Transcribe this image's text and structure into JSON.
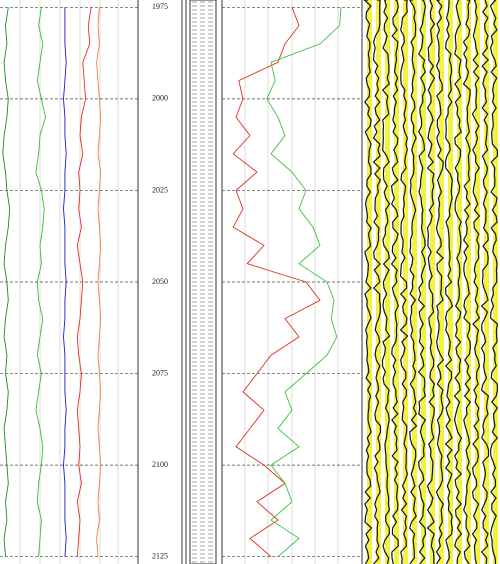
{
  "chart_data": {
    "type": "well-log",
    "ylim": [
      1973,
      2127
    ],
    "yticks": [
      1975,
      2000,
      2025,
      2050,
      2075,
      2100,
      2125
    ],
    "grid": true,
    "y": [
      1975,
      1980,
      1985,
      1990,
      1995,
      2000,
      2005,
      2010,
      2015,
      2020,
      2025,
      2030,
      2035,
      2040,
      2045,
      2050,
      2055,
      2060,
      2065,
      2070,
      2075,
      2080,
      2085,
      2090,
      2095,
      2100,
      2105,
      2110,
      2115,
      2120,
      2125
    ],
    "tracks": [
      {
        "xlim": [
          0,
          100
        ],
        "series": [
          {
            "color": "#1e8a1e",
            "values": [
              6,
              4,
              5,
              3,
              4,
              6,
              5,
              3,
              2,
              4,
              5,
              7,
              6,
              4,
              3,
              5,
              6,
              4,
              3,
              5,
              4,
              6,
              5,
              3,
              4,
              5,
              6,
              4,
              5,
              3,
              4
            ]
          },
          {
            "color": "#2ec42e",
            "values": [
              30,
              28,
              31,
              29,
              27,
              30,
              33,
              29,
              28,
              26,
              30,
              32,
              31,
              29,
              30,
              27,
              28,
              31,
              29,
              27,
              30,
              28,
              26,
              29,
              31,
              30,
              28,
              27,
              30,
              29,
              28
            ]
          },
          {
            "color": "#1a1ad0",
            "values": [
              47,
              47,
              47,
              48,
              47,
              46,
              47,
              47,
              48,
              47,
              47,
              46,
              47,
              47,
              47,
              48,
              47,
              47,
              46,
              47,
              47,
              47,
              48,
              47,
              47,
              46,
              47,
              47,
              47,
              48,
              47
            ]
          },
          {
            "color": "#e03020",
            "values": [
              66,
              64,
              65,
              60,
              61,
              62,
              59,
              58,
              60,
              57,
              58,
              57,
              59,
              56,
              58,
              60,
              59,
              58,
              56,
              57,
              59,
              58,
              56,
              57,
              58,
              57,
              59,
              56,
              58,
              57,
              56
            ]
          },
          {
            "color": "#f08040",
            "values": [
              72,
              71,
              72,
              70,
              71,
              72,
              73,
              72,
              71,
              73,
              72,
              71,
              72,
              73,
              72,
              71,
              72,
              73,
              72,
              71,
              72,
              73,
              72,
              71,
              72,
              73,
              72,
              71,
              72,
              70,
              71
            ]
          }
        ]
      },
      {
        "xlim": [
          0,
          100
        ],
        "series": [
          {
            "color": "#e03020",
            "values": [
              50,
              55,
              45,
              40,
              12,
              15,
              10,
              20,
              8,
              25,
              10,
              15,
              8,
              30,
              18,
              60,
              70,
              45,
              55,
              35,
              25,
              15,
              30,
              20,
              10,
              30,
              45,
              25,
              40,
              20,
              35
            ]
          },
          {
            "color": "#40c040",
            "values": [
              85,
              84,
              70,
              35,
              38,
              32,
              40,
              45,
              35,
              50,
              60,
              55,
              65,
              70,
              55,
              75,
              80,
              78,
              82,
              75,
              60,
              45,
              50,
              40,
              55,
              35,
              45,
              50,
              35,
              55,
              40
            ]
          }
        ]
      }
    ]
  }
}
